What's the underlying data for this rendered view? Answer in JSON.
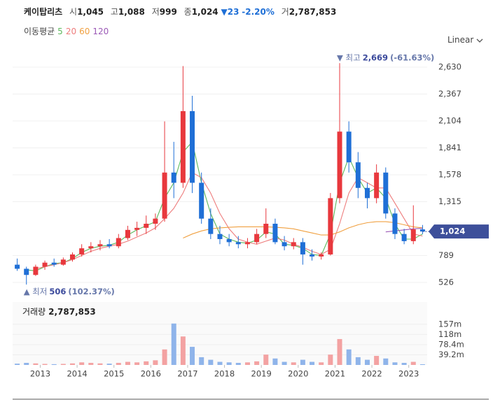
{
  "header": {
    "name": "케이탑리츠",
    "items": [
      {
        "label": "시",
        "value": "1,045"
      },
      {
        "label": "고",
        "value": "1,088"
      },
      {
        "label": "저",
        "value": "999"
      },
      {
        "label": "종",
        "value": "1,024"
      }
    ],
    "change": {
      "arrow": "▼",
      "value": "23",
      "pct": "-2.20%"
    },
    "volume": {
      "label": "거",
      "value": "2,787,853"
    },
    "ma_label": "이동평균"
  },
  "scale_mode": "Linear",
  "chart_data": [
    {
      "type": "candlestick",
      "up_color": "#e8383d",
      "down_color": "#1f6fd6",
      "grid": true,
      "x": [
        2012.375,
        2012.625,
        2012.875,
        2013.125,
        2013.375,
        2013.625,
        2013.875,
        2014.125,
        2014.375,
        2014.625,
        2014.875,
        2015.125,
        2015.375,
        2015.625,
        2015.875,
        2016.125,
        2016.375,
        2016.625,
        2016.875,
        2017.125,
        2017.375,
        2017.625,
        2017.875,
        2018.125,
        2018.375,
        2018.625,
        2018.875,
        2019.125,
        2019.375,
        2019.625,
        2019.875,
        2020.125,
        2020.375,
        2020.625,
        2020.875,
        2021.125,
        2021.375,
        2021.625,
        2021.875,
        2022.125,
        2022.375,
        2022.625,
        2022.875,
        2023.125,
        2023.375
      ],
      "open": [
        700,
        660,
        600,
        680,
        720,
        700,
        750,
        800,
        860,
        880,
        900,
        880,
        960,
        1040,
        1060,
        1100,
        1150,
        1600,
        1500,
        2200,
        1500,
        1150,
        1000,
        950,
        920,
        900,
        920,
        1000,
        1100,
        920,
        880,
        920,
        800,
        780,
        800,
        1350,
        2000,
        1700,
        1450,
        1350,
        1600,
        1200,
        1000,
        930,
        1045
      ],
      "high": [
        760,
        680,
        700,
        740,
        760,
        770,
        820,
        900,
        920,
        940,
        950,
        1000,
        1080,
        1120,
        1180,
        1200,
        2100,
        1900,
        2640,
        2350,
        1600,
        1250,
        1080,
        1000,
        980,
        960,
        1050,
        1250,
        1150,
        980,
        960,
        960,
        850,
        820,
        1400,
        2669,
        2100,
        1800,
        1500,
        1680,
        1650,
        1250,
        1050,
        1280,
        1088
      ],
      "low": [
        640,
        506,
        590,
        650,
        680,
        690,
        730,
        780,
        820,
        840,
        860,
        860,
        940,
        980,
        1000,
        1040,
        1120,
        1350,
        1450,
        1400,
        1100,
        950,
        900,
        880,
        860,
        860,
        900,
        960,
        900,
        840,
        850,
        700,
        740,
        750,
        790,
        1300,
        1600,
        1350,
        1250,
        1300,
        1150,
        950,
        900,
        900,
        999
      ],
      "close": [
        660,
        600,
        680,
        720,
        700,
        750,
        800,
        860,
        880,
        900,
        880,
        960,
        1040,
        1060,
        1100,
        1150,
        1600,
        1500,
        2200,
        1500,
        1150,
        1000,
        950,
        920,
        900,
        920,
        1000,
        1100,
        920,
        880,
        920,
        800,
        780,
        800,
        1350,
        2000,
        1700,
        1450,
        1350,
        1600,
        1200,
        1000,
        930,
        1045,
        1024
      ],
      "series": [
        {
          "name": "5",
          "color": "#5cb85c",
          "values": [
            null,
            650,
            640,
            680,
            710,
            720,
            760,
            820,
            860,
            880,
            890,
            920,
            990,
            1040,
            1080,
            1120,
            1350,
            1500,
            1800,
            1900,
            1500,
            1200,
            1000,
            950,
            920,
            910,
            940,
            1020,
            1000,
            900,
            890,
            860,
            800,
            790,
            1000,
            1500,
            1750,
            1550,
            1400,
            1450,
            1350,
            1100,
            950,
            950,
            1000
          ]
        },
        {
          "name": "20",
          "color": "#ee7d7d",
          "values": [
            null,
            null,
            660,
            680,
            700,
            720,
            750,
            790,
            830,
            860,
            880,
            900,
            930,
            970,
            1010,
            1060,
            1150,
            1250,
            1400,
            1600,
            1550,
            1400,
            1200,
            1050,
            950,
            920,
            900,
            930,
            960,
            940,
            900,
            870,
            830,
            800,
            850,
            1100,
            1400,
            1550,
            1500,
            1450,
            1450,
            1300,
            1150,
            1000,
            980
          ]
        },
        {
          "name": "60",
          "color": "#f0a040",
          "values": [
            null,
            null,
            null,
            null,
            null,
            null,
            null,
            null,
            null,
            null,
            null,
            null,
            null,
            null,
            null,
            null,
            null,
            null,
            960,
            1000,
            1030,
            1050,
            1060,
            1065,
            1070,
            1070,
            1070,
            1070,
            1065,
            1060,
            1050,
            1030,
            1010,
            990,
            990,
            1020,
            1060,
            1090,
            1110,
            1120,
            1120,
            1110,
            1090,
            1070,
            1060
          ]
        },
        {
          "name": "120",
          "color": "#9b59b6",
          "values": [
            null,
            null,
            null,
            null,
            null,
            null,
            null,
            null,
            null,
            null,
            null,
            null,
            null,
            null,
            null,
            null,
            null,
            null,
            null,
            null,
            null,
            null,
            null,
            null,
            null,
            null,
            null,
            null,
            null,
            null,
            null,
            null,
            null,
            null,
            null,
            null,
            null,
            null,
            null,
            null,
            1020,
            1030,
            1040,
            1050,
            1055
          ]
        }
      ],
      "xlim": [
        2012.25,
        2023.5
      ],
      "ylim": [
        383,
        2705
      ],
      "yticks": [
        {
          "value": 526,
          "label": "526"
        },
        {
          "value": 789,
          "label": "789"
        },
        {
          "value": 1315,
          "label": "1,315"
        },
        {
          "value": 1578,
          "label": "1,578"
        },
        {
          "value": 1841,
          "label": "1,841"
        },
        {
          "value": 2104,
          "label": "2,104"
        },
        {
          "value": 2367,
          "label": "2,367"
        },
        {
          "value": 2630,
          "label": "2,630"
        }
      ],
      "annotations": {
        "high": {
          "prefix": "▼ 최고",
          "value": "2,669",
          "pct": "(-61.63%)"
        },
        "low": {
          "prefix": "▲ 최저",
          "value": "506",
          "pct": "(102.37%)"
        }
      }
    },
    {
      "type": "bar",
      "title": "거래량",
      "value_label": "2,787,853",
      "up_color": "#f3a2a2",
      "down_color": "#8fb4ea",
      "x": [
        2012.375,
        2012.625,
        2012.875,
        2013.125,
        2013.375,
        2013.625,
        2013.875,
        2014.125,
        2014.375,
        2014.625,
        2014.875,
        2015.125,
        2015.375,
        2015.625,
        2015.875,
        2016.125,
        2016.375,
        2016.625,
        2016.875,
        2017.125,
        2017.375,
        2017.625,
        2017.875,
        2018.125,
        2018.375,
        2018.625,
        2018.875,
        2019.125,
        2019.375,
        2019.625,
        2019.875,
        2020.125,
        2020.375,
        2020.625,
        2020.875,
        2021.125,
        2021.375,
        2021.625,
        2021.875,
        2022.125,
        2022.375,
        2022.625,
        2022.875,
        2023.125,
        2023.375
      ],
      "values": [
        5000000,
        8000000,
        6000000,
        4000000,
        3000000,
        4000000,
        6000000,
        10000000,
        8000000,
        6000000,
        5000000,
        8000000,
        12000000,
        10000000,
        14000000,
        18000000,
        60000000,
        160000000,
        110000000,
        70000000,
        30000000,
        20000000,
        12000000,
        10000000,
        8000000,
        10000000,
        14000000,
        40000000,
        25000000,
        12000000,
        10000000,
        20000000,
        12000000,
        10000000,
        40000000,
        100000000,
        60000000,
        30000000,
        20000000,
        35000000,
        25000000,
        10000000,
        8000000,
        12000000,
        2787853
      ],
      "xlim": [
        2012.25,
        2023.5
      ],
      "ylim": [
        0,
        243000000
      ],
      "yticks": [
        {
          "value": 39200000,
          "label": "39.2m"
        },
        {
          "value": 78400000,
          "label": "78.4m"
        },
        {
          "value": 118000000,
          "label": "118m"
        },
        {
          "value": 157000000,
          "label": "157m"
        }
      ],
      "xticks": [
        2013,
        2014,
        2015,
        2016,
        2017,
        2018,
        2019,
        2020,
        2021,
        2022,
        2023
      ]
    }
  ]
}
